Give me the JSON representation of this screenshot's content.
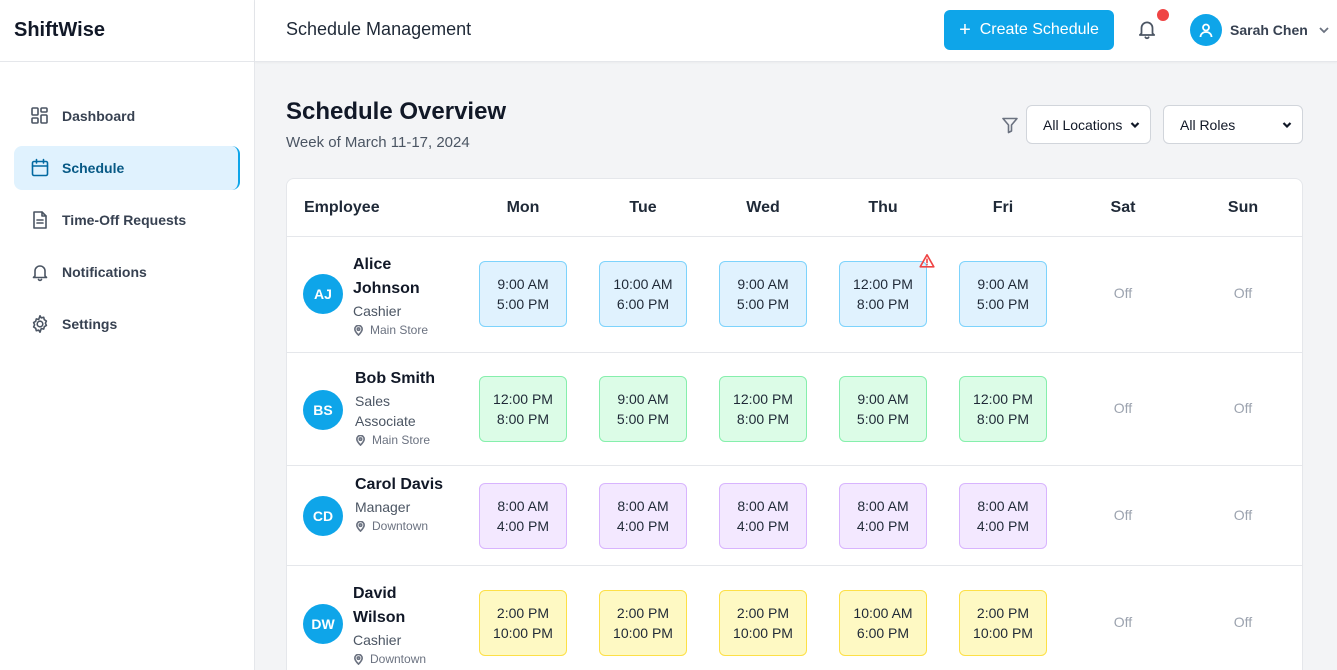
{
  "brand": "ShiftWise",
  "sidebar": {
    "items": [
      {
        "label": "Dashboard",
        "icon": "dashboard-icon"
      },
      {
        "label": "Schedule",
        "icon": "calendar-icon",
        "active": true
      },
      {
        "label": "Time-Off Requests",
        "icon": "document-icon"
      },
      {
        "label": "Notifications",
        "icon": "bell-icon"
      },
      {
        "label": "Settings",
        "icon": "gear-icon"
      }
    ]
  },
  "header": {
    "title": "Schedule Management",
    "create_label": "Create Schedule",
    "user_name": "Sarah Chen",
    "has_notification": true
  },
  "overview": {
    "title": "Schedule Overview",
    "subtitle": "Week of March 11-17, 2024",
    "location_filter": "All Locations",
    "role_filter": "All Roles"
  },
  "table": {
    "employee_header": "Employee",
    "days": [
      "Mon",
      "Tue",
      "Wed",
      "Thu",
      "Fri",
      "Sat",
      "Sun"
    ],
    "off_label": "Off",
    "rows": [
      {
        "initials": "AJ",
        "name_lines": [
          "Alice",
          "Johnson"
        ],
        "role_lines": [
          "Cashier"
        ],
        "location": "Main Store",
        "color": "blue",
        "shifts": [
          {
            "start": "9:00 AM",
            "end": "5:00 PM"
          },
          {
            "start": "10:00 AM",
            "end": "6:00 PM"
          },
          {
            "start": "9:00 AM",
            "end": "5:00 PM"
          },
          {
            "start": "12:00 PM",
            "end": "8:00 PM",
            "warning": true
          },
          {
            "start": "9:00 AM",
            "end": "5:00 PM"
          }
        ]
      },
      {
        "initials": "BS",
        "name_lines": [
          "Bob Smith"
        ],
        "role_lines": [
          "Sales",
          "Associate"
        ],
        "location": "Main Store",
        "color": "green",
        "shifts": [
          {
            "start": "12:00 PM",
            "end": "8:00 PM"
          },
          {
            "start": "9:00 AM",
            "end": "5:00 PM"
          },
          {
            "start": "12:00 PM",
            "end": "8:00 PM"
          },
          {
            "start": "9:00 AM",
            "end": "5:00 PM"
          },
          {
            "start": "12:00 PM",
            "end": "8:00 PM"
          }
        ]
      },
      {
        "initials": "CD",
        "name_lines": [
          "Carol Davis"
        ],
        "role_lines": [
          "Manager"
        ],
        "location": "Downtown",
        "color": "purple",
        "shifts": [
          {
            "start": "8:00 AM",
            "end": "4:00 PM"
          },
          {
            "start": "8:00 AM",
            "end": "4:00 PM"
          },
          {
            "start": "8:00 AM",
            "end": "4:00 PM"
          },
          {
            "start": "8:00 AM",
            "end": "4:00 PM"
          },
          {
            "start": "8:00 AM",
            "end": "4:00 PM"
          }
        ]
      },
      {
        "initials": "DW",
        "name_lines": [
          "David",
          "Wilson"
        ],
        "role_lines": [
          "Cashier"
        ],
        "location": "Downtown",
        "color": "yellow",
        "shifts": [
          {
            "start": "2:00 PM",
            "end": "10:00 PM"
          },
          {
            "start": "2:00 PM",
            "end": "10:00 PM"
          },
          {
            "start": "2:00 PM",
            "end": "10:00 PM"
          },
          {
            "start": "10:00 AM",
            "end": "6:00 PM"
          },
          {
            "start": "2:00 PM",
            "end": "10:00 PM"
          }
        ]
      }
    ]
  }
}
